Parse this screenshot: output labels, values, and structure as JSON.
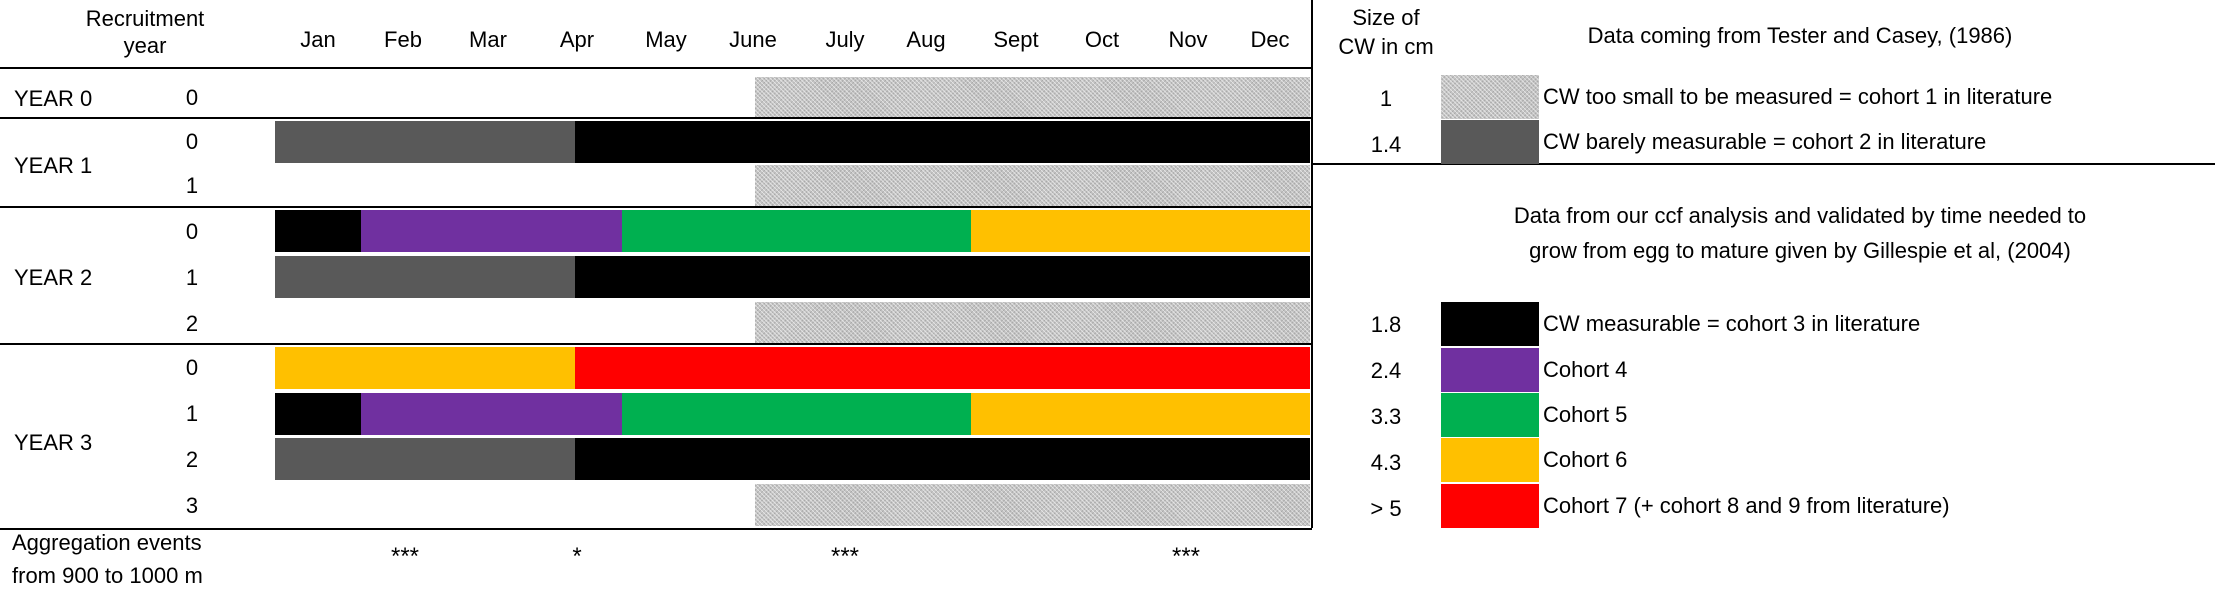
{
  "header": {
    "recruitment_year": "Recruitment year",
    "months": [
      "Jan",
      "Feb",
      "Mar",
      "Apr",
      "May",
      "June",
      "July",
      "Aug",
      "Sept",
      "Oct",
      "Nov",
      "Dec"
    ],
    "size_of_cw": "Size of CW in cm"
  },
  "years": [
    {
      "label": "YEAR 0",
      "rows": [
        "0"
      ]
    },
    {
      "label": "YEAR 1",
      "rows": [
        "0",
        "1"
      ]
    },
    {
      "label": "YEAR 2",
      "rows": [
        "0",
        "1",
        "2"
      ]
    },
    {
      "label": "YEAR 3",
      "rows": [
        "0",
        "1",
        "2",
        "3"
      ]
    }
  ],
  "footer": {
    "aggregation_label_line1": "Aggregation events",
    "aggregation_label_line2": "from 900 to 1000 m",
    "marks": [
      {
        "month": "Feb",
        "text": "***"
      },
      {
        "month": "Apr",
        "text": "*"
      },
      {
        "month": "July",
        "text": "***"
      },
      {
        "month": "Nov",
        "text": "***"
      }
    ]
  },
  "colors": {
    "hatch_gray": "#c4c4c4",
    "dark_gray": "#595959",
    "black": "#000000",
    "purple": "#7030a0",
    "green": "#00b050",
    "orange": "#ffc000",
    "red": "#ff0000"
  },
  "legend": {
    "group1_title": "Data coming from Tester and Casey, (1986)",
    "group2_title_line1": "Data from our ccf analysis and validated by time needed to",
    "group2_title_line2": "grow from egg to mature given by Gillespie et al, (2004)",
    "entries": [
      {
        "size": "1",
        "color": "hatch_gray",
        "label": "CW too small to be measured = cohort 1 in literature"
      },
      {
        "size": "1.4",
        "color": "dark_gray",
        "label": "CW barely measurable = cohort 2 in literature"
      },
      {
        "size": "1.8",
        "color": "black",
        "label": "CW measurable = cohort 3 in literature"
      },
      {
        "size": "2.4",
        "color": "purple",
        "label": "Cohort 4"
      },
      {
        "size": "3.3",
        "color": "green",
        "label": "Cohort 5"
      },
      {
        "size": "4.3",
        "color": "orange",
        "label": "Cohort 6"
      },
      {
        "size": "> 5",
        "color": "red",
        "label": "Cohort 7 (+ cohort 8 and 9 from literature)"
      }
    ]
  },
  "bars": [
    [
      {
        "start": "June",
        "end": "Dec",
        "color": "hatch_gray"
      }
    ],
    [
      {
        "start": "Jan",
        "end": "Apr",
        "color": "dark_gray"
      },
      {
        "start": "Apr",
        "end": "Dec",
        "color": "black"
      }
    ],
    [
      {
        "start": "June",
        "end": "Dec",
        "color": "hatch_gray"
      }
    ],
    [
      {
        "start": "Jan",
        "end": "Jan",
        "color": "black"
      },
      {
        "start": "Feb",
        "end": "Apr",
        "color": "purple"
      },
      {
        "start": "May",
        "end": "July",
        "color": "green"
      },
      {
        "start": "Aug",
        "end": "Dec",
        "color": "orange"
      }
    ],
    [
      {
        "start": "Jan",
        "end": "Apr",
        "color": "dark_gray"
      },
      {
        "start": "Apr",
        "end": "Dec",
        "color": "black"
      }
    ],
    [
      {
        "start": "June",
        "end": "Dec",
        "color": "hatch_gray"
      }
    ],
    [
      {
        "start": "Jan",
        "end": "Apr",
        "color": "orange"
      },
      {
        "start": "Apr",
        "end": "Dec",
        "color": "red"
      }
    ],
    [
      {
        "start": "Jan",
        "end": "Jan",
        "color": "black"
      },
      {
        "start": "Feb",
        "end": "Apr",
        "color": "purple"
      },
      {
        "start": "May",
        "end": "July",
        "color": "green"
      },
      {
        "start": "Aug",
        "end": "Dec",
        "color": "orange"
      }
    ],
    [
      {
        "start": "Jan",
        "end": "Apr",
        "color": "dark_gray"
      },
      {
        "start": "Apr",
        "end": "Dec",
        "color": "black"
      }
    ],
    [
      {
        "start": "June",
        "end": "Dec",
        "color": "hatch_gray"
      }
    ]
  ]
}
